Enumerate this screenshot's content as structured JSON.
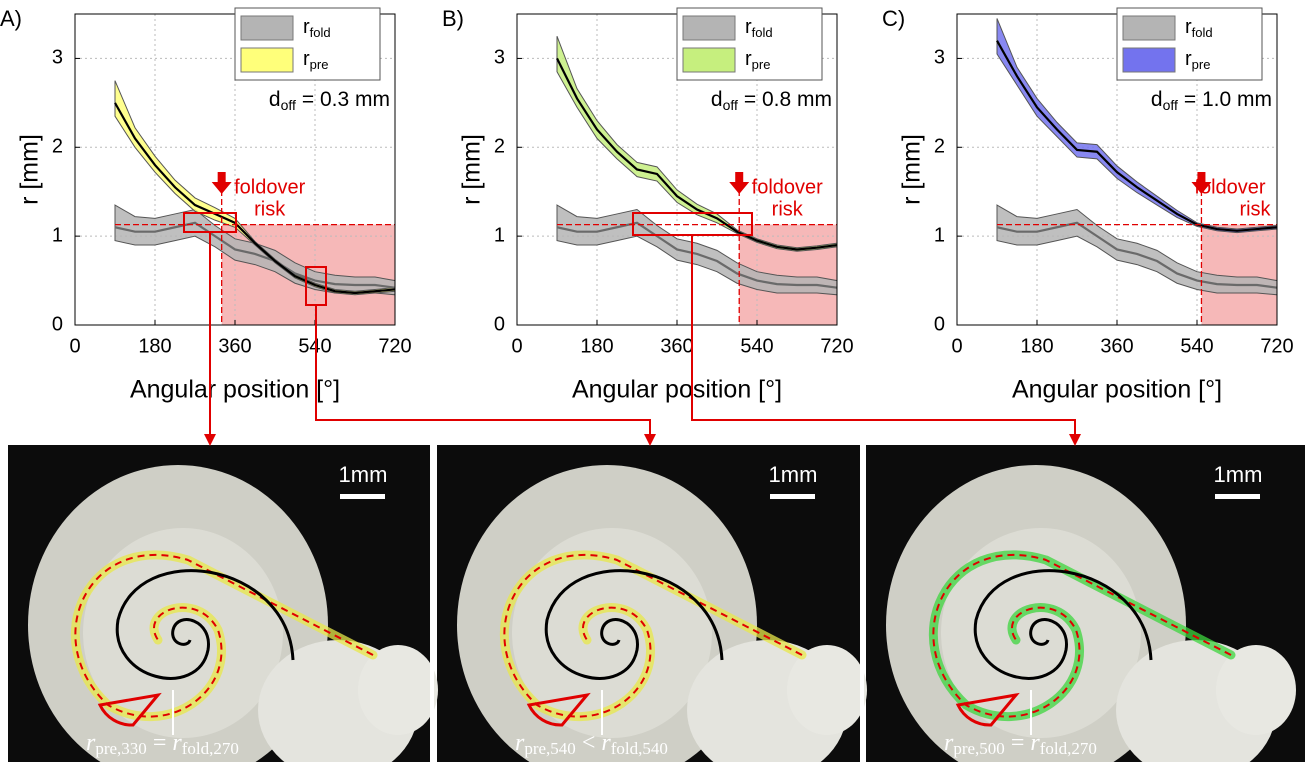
{
  "chart_data": [
    {
      "type": "line",
      "label": "A)",
      "xlabel": "Angular position [°]",
      "ylabel": "r [mm]",
      "x": [
        90,
        135,
        180,
        225,
        270,
        315,
        360,
        405,
        450,
        495,
        540,
        585,
        630,
        675,
        720
      ],
      "xlim": [
        0,
        720
      ],
      "xticks": [
        0,
        180,
        360,
        540,
        720
      ],
      "ylim": [
        0,
        3.5
      ],
      "yticks": [
        0,
        1,
        2,
        3
      ],
      "grid": true,
      "series": [
        {
          "name": "r",
          "name_sub": "fold",
          "color": "#b4b4b4",
          "line_color": "#6a6a6a",
          "values": [
            1.1,
            1.05,
            1.05,
            1.1,
            1.15,
            1.0,
            0.85,
            0.8,
            0.72,
            0.58,
            0.5,
            0.46,
            0.45,
            0.45,
            0.42
          ],
          "lower": [
            0.95,
            0.9,
            0.9,
            0.95,
            1.0,
            0.88,
            0.73,
            0.68,
            0.6,
            0.47,
            0.4,
            0.36,
            0.36,
            0.36,
            0.34
          ],
          "upper": [
            1.35,
            1.22,
            1.2,
            1.25,
            1.3,
            1.12,
            0.97,
            0.92,
            0.84,
            0.7,
            0.6,
            0.56,
            0.54,
            0.54,
            0.5
          ]
        },
        {
          "name": "r",
          "name_sub": "pre",
          "color": "#ffff7a",
          "line_color": "#000000",
          "values": [
            2.5,
            2.1,
            1.8,
            1.55,
            1.35,
            1.25,
            1.15,
            0.92,
            0.72,
            0.55,
            0.45,
            0.38,
            0.36,
            0.38,
            0.4
          ],
          "lower": [
            2.35,
            2.0,
            1.72,
            1.48,
            1.28,
            1.18,
            1.1,
            0.9,
            0.7,
            0.53,
            0.43,
            0.36,
            0.34,
            0.36,
            0.38
          ],
          "upper": [
            2.75,
            2.22,
            1.9,
            1.63,
            1.43,
            1.32,
            1.2,
            0.94,
            0.74,
            0.57,
            0.47,
            0.4,
            0.38,
            0.4,
            0.42
          ]
        }
      ],
      "annotation": {
        "symbol": "d",
        "symbol_sub": "off",
        "text": "= 0.3 mm"
      },
      "threshold": 1.13,
      "risk_x": 330,
      "risk_text": [
        "foldover",
        "risk"
      ],
      "risk_color": "#e00000"
    },
    {
      "type": "line",
      "label": "B)",
      "xlabel": "Angular position [°]",
      "ylabel": "r [mm]",
      "x": [
        90,
        135,
        180,
        225,
        270,
        315,
        360,
        405,
        450,
        495,
        540,
        585,
        630,
        675,
        720
      ],
      "xlim": [
        0,
        720
      ],
      "xticks": [
        0,
        180,
        360,
        540,
        720
      ],
      "ylim": [
        0,
        3.5
      ],
      "yticks": [
        0,
        1,
        2,
        3
      ],
      "grid": true,
      "series": [
        {
          "name": "r",
          "name_sub": "fold",
          "color": "#b4b4b4",
          "line_color": "#6a6a6a",
          "values": [
            1.1,
            1.05,
            1.05,
            1.1,
            1.15,
            1.0,
            0.85,
            0.8,
            0.72,
            0.58,
            0.5,
            0.46,
            0.45,
            0.45,
            0.42
          ],
          "lower": [
            0.95,
            0.9,
            0.9,
            0.95,
            1.0,
            0.88,
            0.73,
            0.68,
            0.6,
            0.47,
            0.4,
            0.36,
            0.36,
            0.36,
            0.34
          ],
          "upper": [
            1.35,
            1.22,
            1.2,
            1.25,
            1.3,
            1.12,
            0.97,
            0.92,
            0.84,
            0.7,
            0.6,
            0.56,
            0.54,
            0.54,
            0.5
          ]
        },
        {
          "name": "r",
          "name_sub": "pre",
          "color": "#c6ef7e",
          "line_color": "#000000",
          "values": [
            3.0,
            2.55,
            2.2,
            1.95,
            1.75,
            1.7,
            1.45,
            1.3,
            1.2,
            1.05,
            0.95,
            0.88,
            0.85,
            0.87,
            0.9
          ],
          "lower": [
            2.85,
            2.45,
            2.1,
            1.87,
            1.67,
            1.62,
            1.38,
            1.24,
            1.15,
            1.03,
            0.93,
            0.86,
            0.83,
            0.85,
            0.88
          ],
          "upper": [
            3.25,
            2.66,
            2.3,
            2.03,
            1.83,
            1.78,
            1.52,
            1.36,
            1.25,
            1.07,
            0.97,
            0.9,
            0.87,
            0.89,
            0.92
          ]
        }
      ],
      "annotation": {
        "symbol": "d",
        "symbol_sub": "off",
        "text": "= 0.8 mm"
      },
      "threshold": 1.13,
      "risk_x": 500,
      "risk_text": [
        "foldover",
        "risk"
      ],
      "risk_color": "#e00000"
    },
    {
      "type": "line",
      "label": "C)",
      "xlabel": "Angular position [°]",
      "ylabel": "r [mm]",
      "x": [
        90,
        135,
        180,
        225,
        270,
        315,
        360,
        405,
        450,
        495,
        540,
        585,
        630,
        675,
        720
      ],
      "xlim": [
        0,
        720
      ],
      "xticks": [
        0,
        180,
        360,
        540,
        720
      ],
      "ylim": [
        0,
        3.5
      ],
      "yticks": [
        0,
        1,
        2,
        3
      ],
      "grid": true,
      "series": [
        {
          "name": "r",
          "name_sub": "fold",
          "color": "#b4b4b4",
          "line_color": "#6a6a6a",
          "values": [
            1.1,
            1.05,
            1.05,
            1.1,
            1.15,
            1.0,
            0.85,
            0.8,
            0.72,
            0.58,
            0.5,
            0.46,
            0.45,
            0.45,
            0.42
          ],
          "lower": [
            0.95,
            0.9,
            0.9,
            0.95,
            1.0,
            0.88,
            0.73,
            0.68,
            0.6,
            0.47,
            0.4,
            0.36,
            0.36,
            0.36,
            0.34
          ],
          "upper": [
            1.35,
            1.22,
            1.2,
            1.25,
            1.3,
            1.12,
            0.97,
            0.92,
            0.84,
            0.7,
            0.6,
            0.56,
            0.54,
            0.54,
            0.5
          ]
        },
        {
          "name": "r",
          "name_sub": "pre",
          "color": "#7373ee",
          "line_color": "#000000",
          "values": [
            3.2,
            2.8,
            2.45,
            2.2,
            1.97,
            1.95,
            1.72,
            1.55,
            1.4,
            1.25,
            1.13,
            1.08,
            1.06,
            1.08,
            1.1
          ],
          "lower": [
            3.05,
            2.7,
            2.35,
            2.12,
            1.89,
            1.87,
            1.65,
            1.49,
            1.35,
            1.21,
            1.11,
            1.06,
            1.04,
            1.06,
            1.08
          ],
          "upper": [
            3.45,
            2.9,
            2.55,
            2.28,
            2.05,
            2.03,
            1.79,
            1.61,
            1.45,
            1.29,
            1.15,
            1.1,
            1.08,
            1.1,
            1.12
          ]
        }
      ],
      "annotation": {
        "symbol": "d",
        "symbol_sub": "off",
        "text": "= 1.0 mm"
      },
      "threshold": 1.13,
      "risk_x": 550,
      "risk_text": [
        "foldover",
        "risk"
      ],
      "risk_color": "#e00000"
    }
  ],
  "photos": [
    {
      "scale_bar": "1mm",
      "equation": {
        "lhs": "r",
        "lhs_sub": "pre,330",
        "op": "=",
        "rhs": "r",
        "rhs_sub": "fold,270"
      },
      "trace_color": "#e8e84a"
    },
    {
      "scale_bar": "1mm",
      "equation": {
        "lhs": "r",
        "lhs_sub": "pre,540",
        "op": "<",
        "rhs": "r",
        "rhs_sub": "fold,540"
      },
      "trace_color": "#e8e84a"
    },
    {
      "scale_bar": "1mm",
      "equation": {
        "lhs": "r",
        "lhs_sub": "pre,500",
        "op": "=",
        "rhs": "r",
        "rhs_sub": "fold,270"
      },
      "trace_color": "#3ed63e"
    }
  ]
}
